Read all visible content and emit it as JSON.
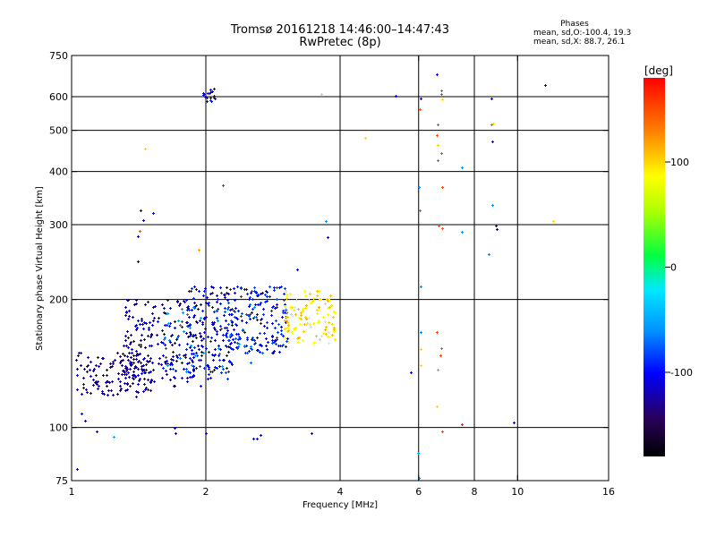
{
  "header": {
    "title_line1": "Tromsø 20161218 14:46:00–14:47:43",
    "title_line2": "RwPretec (8p)"
  },
  "phases_box": {
    "title": "Phases",
    "line1": "mean, sd,O:-100.4, 19.3",
    "line2": "mean, sd,X: 88.7, 26.1"
  },
  "colorbar": {
    "label": "[deg]",
    "range": [
      -180,
      180
    ],
    "ticks": [
      100,
      0,
      -100
    ],
    "tick_labels": [
      "100",
      "0",
      "-100"
    ]
  },
  "chart_data": {
    "type": "scatter",
    "xlabel": "Frequency [MHz]",
    "ylabel": "Stationary phase Virtual Height [km]",
    "x_scale": "log",
    "y_scale": "log",
    "xlim": [
      1,
      16
    ],
    "ylim": [
      75,
      750
    ],
    "x_ticks": [
      1,
      2,
      4,
      6,
      8,
      10,
      16
    ],
    "x_tick_labels": [
      "1",
      "2",
      "4",
      "6",
      "8",
      "10",
      "16"
    ],
    "y_ticks": [
      75,
      100,
      200,
      300,
      400,
      500,
      600,
      750
    ],
    "y_tick_labels": [
      "75",
      "100",
      "200",
      "300",
      "400",
      "500",
      "600",
      "750"
    ],
    "grid_x": [
      2,
      4,
      6,
      8,
      10
    ],
    "grid_y": [
      100,
      200,
      300,
      400,
      500,
      600
    ],
    "color_by": "phase_deg",
    "clusters": [
      {
        "x_range": [
          1.02,
          1.5
        ],
        "y_range": [
          118,
          150
        ],
        "phase": -125,
        "n": 130,
        "seed": 11
      },
      {
        "x_range": [
          1.3,
          1.95
        ],
        "y_range": [
          125,
          200
        ],
        "phase": -115,
        "n": 210,
        "seed": 12
      },
      {
        "x_range": [
          1.8,
          2.3
        ],
        "y_range": [
          130,
          215
        ],
        "phase": -105,
        "n": 160,
        "seed": 13
      },
      {
        "x_range": [
          2.2,
          3.05
        ],
        "y_range": [
          150,
          215
        ],
        "phase": -95,
        "n": 200,
        "seed": 14
      },
      {
        "x_range": [
          3.0,
          3.9
        ],
        "y_range": [
          158,
          210
        ],
        "phase": 95,
        "n": 110,
        "seed": 15
      },
      {
        "x_range": [
          1.6,
          2.6
        ],
        "y_range": [
          135,
          195
        ],
        "phase": -70,
        "n": 60,
        "seed": 16
      },
      {
        "x_range": [
          1.96,
          2.1
        ],
        "y_range": [
          582,
          630
        ],
        "phase": -108,
        "n": 18,
        "seed": 17
      }
    ],
    "points": [
      [
        1.03,
        80,
        -110
      ],
      [
        1.05,
        108,
        -100
      ],
      [
        1.07,
        104,
        -108
      ],
      [
        1.14,
        98,
        -110
      ],
      [
        1.24,
        95,
        -50
      ],
      [
        1.41,
        282,
        -105
      ],
      [
        1.43,
        325,
        -110
      ],
      [
        1.45,
        308,
        -100
      ],
      [
        1.42,
        290,
        150
      ],
      [
        1.46,
        452,
        100
      ],
      [
        1.41,
        246,
        -140
      ],
      [
        1.52,
        320,
        -105
      ],
      [
        1.7,
        100,
        -110
      ],
      [
        1.71,
        97,
        -110
      ],
      [
        1.93,
        262,
        120
      ],
      [
        2.0,
        97,
        -100
      ],
      [
        2.18,
        372,
        170
      ],
      [
        2.55,
        94,
        -110
      ],
      [
        2.65,
        96,
        -110
      ],
      [
        2.6,
        94,
        -100
      ],
      [
        3.2,
        236,
        -100
      ],
      [
        3.45,
        97,
        -110
      ],
      [
        3.63,
        608,
        100
      ],
      [
        3.72,
        306,
        -60
      ],
      [
        3.75,
        281,
        -120
      ],
      [
        4.55,
        481,
        100
      ],
      [
        5.33,
        603,
        -110
      ],
      [
        5.75,
        135,
        -110
      ],
      [
        5.97,
        87,
        -50
      ],
      [
        6.05,
        595,
        -110
      ],
      [
        6.03,
        562,
        150
      ],
      [
        6.02,
        368,
        -60
      ],
      [
        6.03,
        325,
        -60
      ],
      [
        6.05,
        215,
        -60
      ],
      [
        6.07,
        168,
        -60
      ],
      [
        6.05,
        153,
        100
      ],
      [
        6.06,
        140,
        100
      ],
      [
        6.02,
        76,
        -60
      ],
      [
        6.58,
        678,
        -110
      ],
      [
        6.62,
        517,
        150
      ],
      [
        6.6,
        487,
        150
      ],
      [
        6.62,
        461,
        100
      ],
      [
        6.63,
        425,
        150
      ],
      [
        6.64,
        298,
        150
      ],
      [
        6.6,
        168,
        150
      ],
      [
        6.63,
        137,
        120
      ],
      [
        6.58,
        112,
        100
      ],
      [
        6.75,
        622,
        -60
      ],
      [
        6.73,
        610,
        -60
      ],
      [
        6.77,
        590,
        100
      ],
      [
        6.75,
        442,
        150
      ],
      [
        6.77,
        367,
        150
      ],
      [
        6.76,
        294,
        150
      ],
      [
        6.74,
        154,
        150
      ],
      [
        6.72,
        148,
        150
      ],
      [
        6.76,
        98,
        150
      ],
      [
        7.5,
        410,
        -60
      ],
      [
        7.5,
        288,
        -60
      ],
      [
        7.5,
        102,
        170
      ],
      [
        8.62,
        256,
        -60
      ],
      [
        8.75,
        593,
        -110
      ],
      [
        8.77,
        470,
        -110
      ],
      [
        8.73,
        517,
        140
      ],
      [
        8.82,
        520,
        100
      ],
      [
        8.78,
        334,
        -60
      ],
      [
        8.95,
        299,
        -140
      ],
      [
        8.96,
        293,
        -140
      ],
      [
        9.8,
        103,
        -110
      ],
      [
        11.5,
        640,
        -110
      ],
      [
        12.0,
        306,
        100
      ]
    ]
  }
}
